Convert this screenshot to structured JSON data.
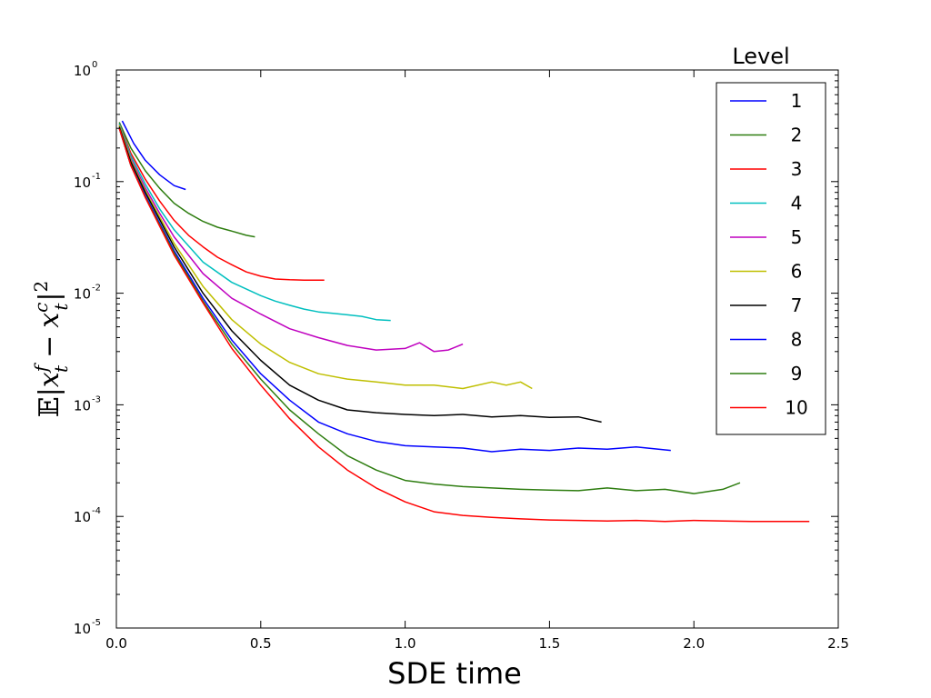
{
  "chart_data": {
    "type": "line",
    "title": "",
    "xlabel": "SDE time",
    "ylabel": "E|x_t^f - x_t^c|^2",
    "ylabel_parts": {
      "E": "𝔼",
      "bar": "|",
      "x": "x",
      "t": "t",
      "f": "f",
      "minus": "−",
      "c": "c",
      "sq": "2"
    },
    "xlim": [
      0.0,
      2.5
    ],
    "ylim": [
      1e-05,
      1.0
    ],
    "yscale": "log",
    "xticks": [
      0.0,
      0.5,
      1.0,
      1.5,
      2.0,
      2.5
    ],
    "xtick_labels": [
      "0.0",
      "0.5",
      "1.0",
      "1.5",
      "2.0",
      "2.5"
    ],
    "yticks": [
      {
        "base": "10",
        "exp": "-5",
        "value": 1e-05
      },
      {
        "base": "10",
        "exp": "-4",
        "value": 0.0001
      },
      {
        "base": "10",
        "exp": "-3",
        "value": 0.001
      },
      {
        "base": "10",
        "exp": "-2",
        "value": 0.01
      },
      {
        "base": "10",
        "exp": "-1",
        "value": 0.1
      },
      {
        "base": "10",
        "exp": "0",
        "value": 1.0
      }
    ],
    "legend_title": "Level",
    "legend_position": "top-right",
    "series": [
      {
        "name": "1",
        "color": "#0000ff",
        "x": [
          0.02,
          0.06,
          0.1,
          0.15,
          0.2,
          0.24
        ],
        "y": [
          0.35,
          0.22,
          0.155,
          0.115,
          0.092,
          0.085
        ]
      },
      {
        "name": "2",
        "color": "#2e7d10",
        "x": [
          0.01,
          0.05,
          0.1,
          0.15,
          0.2,
          0.25,
          0.3,
          0.35,
          0.4,
          0.45,
          0.48
        ],
        "y": [
          0.34,
          0.2,
          0.125,
          0.087,
          0.064,
          0.052,
          0.044,
          0.039,
          0.036,
          0.033,
          0.032
        ]
      },
      {
        "name": "3",
        "color": "#ff0000",
        "x": [
          0.01,
          0.05,
          0.1,
          0.15,
          0.2,
          0.25,
          0.3,
          0.35,
          0.4,
          0.45,
          0.5,
          0.55,
          0.6,
          0.65,
          0.72
        ],
        "y": [
          0.33,
          0.18,
          0.105,
          0.067,
          0.045,
          0.033,
          0.026,
          0.021,
          0.018,
          0.0155,
          0.0142,
          0.0134,
          0.0132,
          0.0131,
          0.0131
        ]
      },
      {
        "name": "4",
        "color": "#00bfbf",
        "x": [
          0.01,
          0.05,
          0.1,
          0.15,
          0.2,
          0.3,
          0.4,
          0.5,
          0.55,
          0.6,
          0.65,
          0.7,
          0.75,
          0.8,
          0.85,
          0.9,
          0.95
        ],
        "y": [
          0.33,
          0.17,
          0.095,
          0.057,
          0.037,
          0.019,
          0.0125,
          0.0095,
          0.0085,
          0.0078,
          0.0072,
          0.0068,
          0.0066,
          0.0064,
          0.0062,
          0.0058,
          0.0057
        ]
      },
      {
        "name": "5",
        "color": "#bf00bf",
        "x": [
          0.01,
          0.05,
          0.1,
          0.15,
          0.2,
          0.3,
          0.4,
          0.5,
          0.6,
          0.7,
          0.8,
          0.9,
          1.0,
          1.05,
          1.1,
          1.15,
          1.2
        ],
        "y": [
          0.32,
          0.16,
          0.088,
          0.052,
          0.032,
          0.015,
          0.009,
          0.0065,
          0.0048,
          0.004,
          0.0034,
          0.0031,
          0.0032,
          0.0036,
          0.003,
          0.0031,
          0.0035
        ]
      },
      {
        "name": "6",
        "color": "#bfbf00",
        "x": [
          0.01,
          0.05,
          0.1,
          0.2,
          0.3,
          0.4,
          0.5,
          0.6,
          0.7,
          0.8,
          0.9,
          1.0,
          1.1,
          1.2,
          1.3,
          1.35,
          1.4,
          1.44
        ],
        "y": [
          0.32,
          0.155,
          0.083,
          0.028,
          0.0115,
          0.0058,
          0.0035,
          0.0024,
          0.0019,
          0.0017,
          0.0016,
          0.0015,
          0.0015,
          0.0014,
          0.0016,
          0.0015,
          0.0016,
          0.0014
        ]
      },
      {
        "name": "7",
        "color": "#000000",
        "x": [
          0.01,
          0.05,
          0.1,
          0.2,
          0.3,
          0.4,
          0.5,
          0.6,
          0.7,
          0.8,
          0.9,
          1.0,
          1.1,
          1.2,
          1.3,
          1.4,
          1.5,
          1.6,
          1.68
        ],
        "y": [
          0.31,
          0.15,
          0.08,
          0.026,
          0.01,
          0.0046,
          0.0025,
          0.0015,
          0.0011,
          0.0009,
          0.00085,
          0.00082,
          0.0008,
          0.00082,
          0.00078,
          0.0008,
          0.00077,
          0.00078,
          0.0007
        ]
      },
      {
        "name": "8",
        "color": "#0000ff",
        "x": [
          0.01,
          0.05,
          0.1,
          0.2,
          0.3,
          0.4,
          0.5,
          0.6,
          0.7,
          0.8,
          0.9,
          1.0,
          1.1,
          1.2,
          1.3,
          1.4,
          1.5,
          1.6,
          1.7,
          1.8,
          1.92
        ],
        "y": [
          0.3,
          0.14,
          0.075,
          0.024,
          0.009,
          0.0038,
          0.0019,
          0.0011,
          0.0007,
          0.00055,
          0.00047,
          0.00043,
          0.00042,
          0.00041,
          0.00038,
          0.0004,
          0.00039,
          0.00041,
          0.0004,
          0.00042,
          0.00039
        ]
      },
      {
        "name": "9",
        "color": "#2e7d10",
        "x": [
          0.01,
          0.05,
          0.1,
          0.2,
          0.3,
          0.4,
          0.5,
          0.6,
          0.7,
          0.8,
          0.9,
          1.0,
          1.1,
          1.2,
          1.3,
          1.4,
          1.5,
          1.6,
          1.7,
          1.8,
          1.9,
          2.0,
          2.1,
          2.16
        ],
        "y": [
          0.3,
          0.14,
          0.073,
          0.023,
          0.0085,
          0.0035,
          0.0017,
          0.0009,
          0.00055,
          0.00035,
          0.00026,
          0.00021,
          0.000195,
          0.000185,
          0.00018,
          0.000175,
          0.000172,
          0.00017,
          0.00018,
          0.00017,
          0.000175,
          0.00016,
          0.000175,
          0.0002
        ]
      },
      {
        "name": "10",
        "color": "#ff0000",
        "x": [
          0.01,
          0.05,
          0.1,
          0.2,
          0.3,
          0.4,
          0.5,
          0.6,
          0.7,
          0.8,
          0.9,
          1.0,
          1.1,
          1.2,
          1.3,
          1.4,
          1.5,
          1.6,
          1.7,
          1.8,
          1.9,
          2.0,
          2.1,
          2.2,
          2.3,
          2.4
        ],
        "y": [
          0.3,
          0.14,
          0.072,
          0.022,
          0.0082,
          0.0032,
          0.0015,
          0.00075,
          0.00042,
          0.00026,
          0.00018,
          0.000135,
          0.00011,
          0.000102,
          9.8e-05,
          9.5e-05,
          9.3e-05,
          9.2e-05,
          9.1e-05,
          9.2e-05,
          9e-05,
          9.2e-05,
          9.1e-05,
          9e-05,
          9e-05,
          9e-05
        ]
      }
    ]
  }
}
